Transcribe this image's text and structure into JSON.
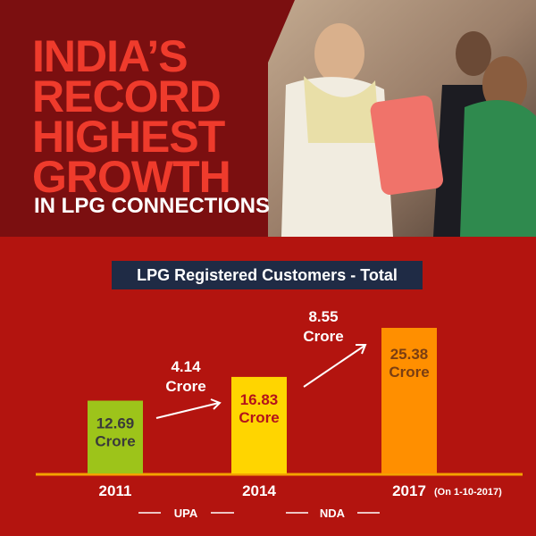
{
  "headline": [
    "INDIA’S",
    "RECORD",
    "HIGHEST",
    "GROWTH"
  ],
  "tagline": "IN LPG CONNECTIONS",
  "chart_data": {
    "type": "bar",
    "title": "LPG Registered Customers - Total",
    "categories": [
      "2011",
      "2014",
      "2017"
    ],
    "values": [
      12.69,
      16.83,
      25.38
    ],
    "value_labels": [
      "12.69 Crore",
      "16.83 Crore",
      "25.38 Crore"
    ],
    "colors": [
      "#9dc41a",
      "#ffd500",
      "#ff8f00"
    ],
    "label_colors": [
      "#3a3a3a",
      "#b3121b",
      "#7a3e12"
    ],
    "note": "(On 1-10-2017)",
    "annotations": [
      "4.14 Crore",
      "8.55 Crore"
    ],
    "groups": [
      "UPA",
      "NDA"
    ]
  }
}
